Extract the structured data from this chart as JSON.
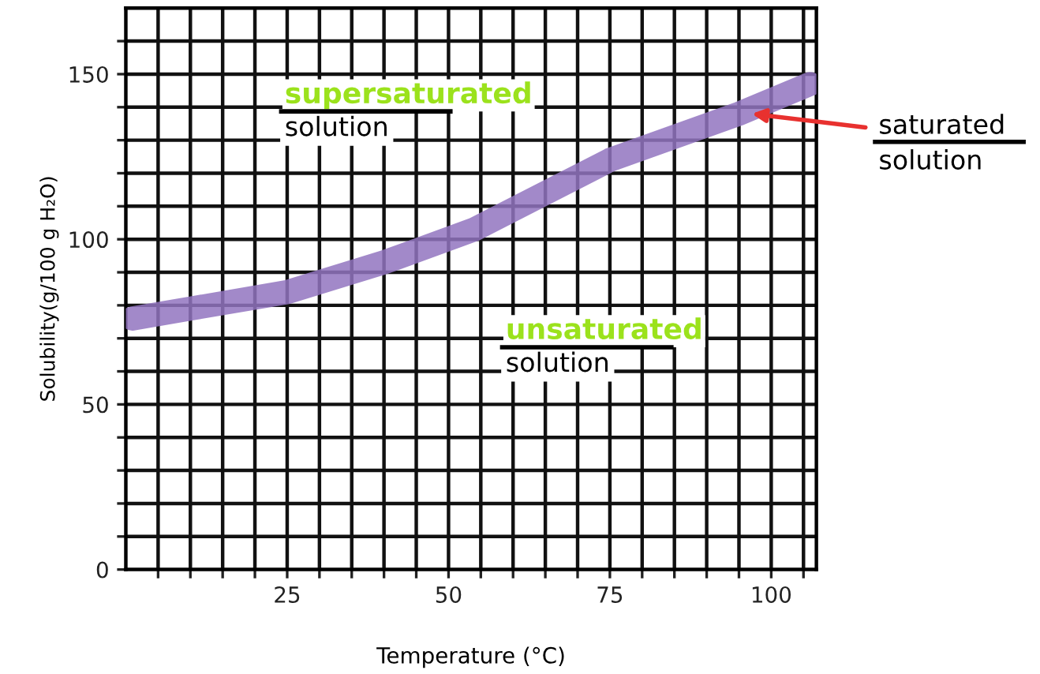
{
  "chart_data": {
    "type": "line",
    "xlabel": "Temperature (°C)",
    "ylabel": "Solubility(g/100 g H₂O)",
    "x": [
      1,
      10,
      25,
      40,
      54,
      75,
      95,
      106
    ],
    "series": [
      {
        "color": "#9274c0",
        "values": [
          76,
          79,
          84,
          93,
          103,
          124,
          138,
          147
        ]
      }
    ],
    "xlim": [
      0,
      107
    ],
    "xticks": [
      {
        "value": 5,
        "label": null
      },
      {
        "value": 10,
        "label": null
      },
      {
        "value": 15,
        "label": null
      },
      {
        "value": 20,
        "label": null
      },
      25,
      {
        "value": 30,
        "label": null
      },
      {
        "value": 35,
        "label": null
      },
      {
        "value": 40,
        "label": null
      },
      {
        "value": 45,
        "label": null
      },
      50,
      {
        "value": 55,
        "label": null
      },
      {
        "value": 60,
        "label": null
      },
      {
        "value": 65,
        "label": null
      },
      {
        "value": 70,
        "label": null
      },
      75,
      {
        "value": 80,
        "label": null
      },
      {
        "value": 85,
        "label": null
      },
      {
        "value": 90,
        "label": null
      },
      {
        "value": 95,
        "label": null
      },
      100,
      {
        "value": 105,
        "label": null
      }
    ],
    "ylim": [
      0,
      170
    ],
    "yticks": [
      0,
      {
        "value": 10,
        "label": null
      },
      {
        "value": 20,
        "label": null
      },
      {
        "value": 30,
        "label": null
      },
      {
        "value": 40,
        "label": null
      },
      50,
      {
        "value": 60,
        "label": null
      },
      {
        "value": 70,
        "label": null
      },
      {
        "value": 80,
        "label": null
      },
      {
        "value": 90,
        "label": null
      },
      100,
      {
        "value": 110,
        "label": null
      },
      {
        "value": 120,
        "label": null
      },
      {
        "value": 130,
        "label": null
      },
      {
        "value": 140,
        "label": null
      },
      150,
      {
        "value": 160,
        "label": null
      }
    ],
    "grid": true,
    "legend": false,
    "marker": "none",
    "line_style": "solid",
    "annotations": [
      "supersaturated\nsolution",
      "unsaturated\nsolution",
      {
        "text": "saturated\nsolution",
        "x": 97,
        "y": 138
      }
    ]
  }
}
